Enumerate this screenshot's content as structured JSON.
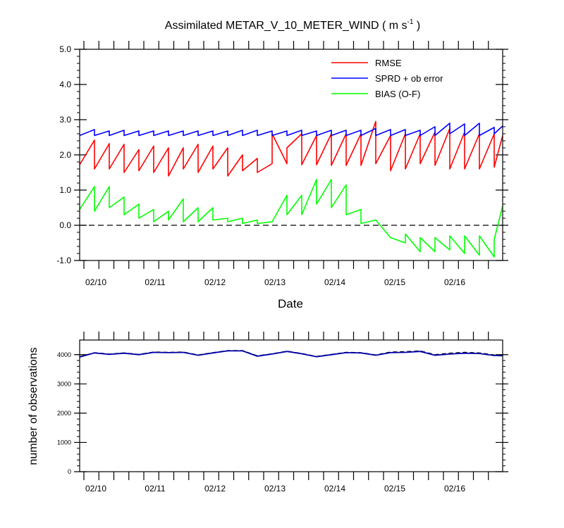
{
  "chart_data": [
    {
      "type": "line",
      "title": "Assimilated METAR_V_10_METER_WIND ( m s",
      "title_sup": "-1",
      "title_close": " )",
      "xlabel": "Date",
      "ylabel": "",
      "x_tick_labels": [
        "02/10",
        "02/11",
        "02/12",
        "02/13",
        "02/14",
        "02/15",
        "02/16"
      ],
      "y_tick_labels": [
        "5.0",
        "4.0",
        "3.0",
        "2.0",
        "1.0",
        "0.0",
        "-1.0"
      ],
      "ylim": [
        -1.0,
        5.0
      ],
      "xlim": [
        0,
        1
      ],
      "reference_line": 0.0,
      "legend_position": "top-right",
      "grid": false,
      "colors": {
        "rmse": "#ff0000",
        "sprd": "#0000ff",
        "bias": "#00ff00"
      },
      "series": [
        {
          "name": "RMSE",
          "points": [
            [
              0.0,
              1.72
            ],
            [
              0.035,
              2.42
            ],
            [
              0.035,
              1.6
            ],
            [
              0.07,
              2.32
            ],
            [
              0.07,
              1.6
            ],
            [
              0.105,
              2.3
            ],
            [
              0.105,
              1.5
            ],
            [
              0.14,
              2.15
            ],
            [
              0.14,
              1.55
            ],
            [
              0.175,
              2.25
            ],
            [
              0.175,
              1.5
            ],
            [
              0.21,
              2.2
            ],
            [
              0.21,
              1.4
            ],
            [
              0.245,
              2.2
            ],
            [
              0.245,
              1.6
            ],
            [
              0.28,
              2.3
            ],
            [
              0.28,
              1.5
            ],
            [
              0.315,
              2.25
            ],
            [
              0.315,
              1.6
            ],
            [
              0.35,
              2.2
            ],
            [
              0.35,
              1.4
            ],
            [
              0.385,
              2.0
            ],
            [
              0.385,
              1.55
            ],
            [
              0.42,
              1.9
            ],
            [
              0.42,
              1.5
            ],
            [
              0.455,
              1.75
            ],
            [
              0.455,
              2.6
            ],
            [
              0.49,
              1.75
            ],
            [
              0.49,
              2.2
            ],
            [
              0.525,
              2.6
            ],
            [
              0.525,
              1.72
            ],
            [
              0.56,
              2.55
            ],
            [
              0.56,
              1.72
            ],
            [
              0.595,
              2.6
            ],
            [
              0.595,
              1.7
            ],
            [
              0.63,
              2.6
            ],
            [
              0.63,
              1.7
            ],
            [
              0.665,
              2.6
            ],
            [
              0.665,
              1.7
            ],
            [
              0.7,
              2.95
            ],
            [
              0.7,
              1.75
            ],
            [
              0.735,
              2.55
            ],
            [
              0.735,
              1.55
            ],
            [
              0.77,
              2.6
            ],
            [
              0.77,
              1.6
            ],
            [
              0.805,
              2.6
            ],
            [
              0.805,
              1.75
            ],
            [
              0.84,
              2.65
            ],
            [
              0.84,
              1.7
            ],
            [
              0.875,
              2.75
            ],
            [
              0.875,
              1.6
            ],
            [
              0.91,
              2.65
            ],
            [
              0.91,
              1.6
            ],
            [
              0.945,
              2.6
            ],
            [
              0.945,
              1.6
            ],
            [
              0.98,
              2.6
            ],
            [
              0.98,
              1.65
            ],
            [
              1.0,
              2.55
            ]
          ]
        },
        {
          "name": "SPRD + ob error",
          "points": [
            [
              0.0,
              2.55
            ],
            [
              0.035,
              2.72
            ],
            [
              0.035,
              2.55
            ],
            [
              0.07,
              2.68
            ],
            [
              0.07,
              2.55
            ],
            [
              0.105,
              2.7
            ],
            [
              0.105,
              2.55
            ],
            [
              0.14,
              2.68
            ],
            [
              0.14,
              2.55
            ],
            [
              0.175,
              2.68
            ],
            [
              0.175,
              2.55
            ],
            [
              0.21,
              2.68
            ],
            [
              0.21,
              2.55
            ],
            [
              0.245,
              2.68
            ],
            [
              0.245,
              2.55
            ],
            [
              0.28,
              2.68
            ],
            [
              0.28,
              2.55
            ],
            [
              0.315,
              2.68
            ],
            [
              0.315,
              2.55
            ],
            [
              0.35,
              2.68
            ],
            [
              0.35,
              2.55
            ],
            [
              0.385,
              2.7
            ],
            [
              0.385,
              2.55
            ],
            [
              0.42,
              2.7
            ],
            [
              0.42,
              2.55
            ],
            [
              0.455,
              2.68
            ],
            [
              0.455,
              2.55
            ],
            [
              0.49,
              2.68
            ],
            [
              0.49,
              2.55
            ],
            [
              0.525,
              2.7
            ],
            [
              0.525,
              2.55
            ],
            [
              0.56,
              2.68
            ],
            [
              0.56,
              2.55
            ],
            [
              0.595,
              2.7
            ],
            [
              0.595,
              2.55
            ],
            [
              0.63,
              2.7
            ],
            [
              0.63,
              2.55
            ],
            [
              0.665,
              2.7
            ],
            [
              0.665,
              2.55
            ],
            [
              0.7,
              2.75
            ],
            [
              0.7,
              2.55
            ],
            [
              0.735,
              2.72
            ],
            [
              0.735,
              2.55
            ],
            [
              0.77,
              2.72
            ],
            [
              0.77,
              2.55
            ],
            [
              0.805,
              2.7
            ],
            [
              0.805,
              2.55
            ],
            [
              0.84,
              2.8
            ],
            [
              0.84,
              2.55
            ],
            [
              0.875,
              2.9
            ],
            [
              0.875,
              2.6
            ],
            [
              0.91,
              2.88
            ],
            [
              0.91,
              2.55
            ],
            [
              0.945,
              2.9
            ],
            [
              0.945,
              2.55
            ],
            [
              0.98,
              2.78
            ],
            [
              0.98,
              2.6
            ],
            [
              1.0,
              2.82
            ]
          ]
        },
        {
          "name": "BIAS (O-F)",
          "points": [
            [
              0.0,
              0.45
            ],
            [
              0.035,
              1.1
            ],
            [
              0.035,
              0.4
            ],
            [
              0.07,
              1.1
            ],
            [
              0.07,
              0.5
            ],
            [
              0.105,
              0.8
            ],
            [
              0.105,
              0.3
            ],
            [
              0.14,
              0.6
            ],
            [
              0.14,
              0.2
            ],
            [
              0.175,
              0.45
            ],
            [
              0.175,
              0.1
            ],
            [
              0.21,
              0.4
            ],
            [
              0.21,
              0.15
            ],
            [
              0.245,
              0.75
            ],
            [
              0.245,
              0.1
            ],
            [
              0.28,
              0.5
            ],
            [
              0.28,
              0.1
            ],
            [
              0.315,
              0.5
            ],
            [
              0.315,
              0.15
            ],
            [
              0.35,
              0.2
            ],
            [
              0.35,
              0.1
            ],
            [
              0.385,
              0.2
            ],
            [
              0.385,
              0.05
            ],
            [
              0.42,
              0.15
            ],
            [
              0.42,
              0.05
            ],
            [
              0.455,
              0.1
            ],
            [
              0.49,
              0.85
            ],
            [
              0.49,
              0.3
            ],
            [
              0.525,
              0.85
            ],
            [
              0.525,
              0.3
            ],
            [
              0.56,
              1.3
            ],
            [
              0.56,
              0.6
            ],
            [
              0.595,
              1.3
            ],
            [
              0.595,
              0.5
            ],
            [
              0.63,
              1.15
            ],
            [
              0.63,
              0.3
            ],
            [
              0.665,
              0.45
            ],
            [
              0.665,
              0.05
            ],
            [
              0.7,
              0.15
            ],
            [
              0.735,
              -0.35
            ],
            [
              0.77,
              -0.5
            ],
            [
              0.77,
              -0.25
            ],
            [
              0.805,
              -0.75
            ],
            [
              0.805,
              -0.35
            ],
            [
              0.84,
              -0.75
            ],
            [
              0.84,
              -0.35
            ],
            [
              0.875,
              -0.7
            ],
            [
              0.875,
              -0.3
            ],
            [
              0.91,
              -0.8
            ],
            [
              0.91,
              -0.3
            ],
            [
              0.945,
              -0.85
            ],
            [
              0.945,
              -0.3
            ],
            [
              0.98,
              -0.9
            ],
            [
              0.98,
              -0.4
            ],
            [
              1.0,
              0.55
            ]
          ]
        }
      ]
    },
    {
      "type": "line",
      "title": "",
      "xlabel": "",
      "ylabel": "number of observations",
      "x_tick_labels": [
        "02/10",
        "02/11",
        "02/12",
        "02/13",
        "02/14",
        "02/15",
        "02/16"
      ],
      "y_tick_labels": [
        "4000",
        "3000",
        "2000",
        "1000",
        "0"
      ],
      "ylim": [
        0,
        4500
      ],
      "xlim": [
        0,
        1
      ],
      "grid": false,
      "colors": {
        "obs_used": "#0000aa",
        "obs_possible": "#000000"
      },
      "series": [
        {
          "points": [
            [
              0.0,
              3920
            ],
            [
              0.035,
              4060
            ],
            [
              0.07,
              4010
            ],
            [
              0.105,
              4050
            ],
            [
              0.14,
              4000
            ],
            [
              0.175,
              4080
            ],
            [
              0.21,
              4070
            ],
            [
              0.245,
              4080
            ],
            [
              0.28,
              3980
            ],
            [
              0.315,
              4060
            ],
            [
              0.35,
              4130
            ],
            [
              0.385,
              4130
            ],
            [
              0.42,
              3950
            ],
            [
              0.455,
              4020
            ],
            [
              0.49,
              4110
            ],
            [
              0.525,
              4030
            ],
            [
              0.56,
              3930
            ],
            [
              0.595,
              4000
            ],
            [
              0.63,
              4070
            ],
            [
              0.665,
              4060
            ],
            [
              0.7,
              3980
            ],
            [
              0.735,
              4070
            ],
            [
              0.77,
              4080
            ],
            [
              0.805,
              4110
            ],
            [
              0.84,
              3980
            ],
            [
              0.875,
              4020
            ],
            [
              0.91,
              4050
            ],
            [
              0.945,
              4040
            ],
            [
              0.98,
              3970
            ],
            [
              1.0,
              3960
            ]
          ]
        },
        {
          "points": [
            [
              0.0,
              3930
            ],
            [
              0.035,
              4070
            ],
            [
              0.07,
              4020
            ],
            [
              0.105,
              4060
            ],
            [
              0.14,
              4010
            ],
            [
              0.175,
              4090
            ],
            [
              0.21,
              4080
            ],
            [
              0.245,
              4090
            ],
            [
              0.28,
              3990
            ],
            [
              0.315,
              4070
            ],
            [
              0.35,
              4140
            ],
            [
              0.385,
              4140
            ],
            [
              0.42,
              3960
            ],
            [
              0.455,
              4030
            ],
            [
              0.49,
              4120
            ],
            [
              0.525,
              4040
            ],
            [
              0.56,
              3940
            ],
            [
              0.595,
              4010
            ],
            [
              0.63,
              4080
            ],
            [
              0.665,
              4070
            ],
            [
              0.7,
              3990
            ],
            [
              0.735,
              4090
            ],
            [
              0.77,
              4100
            ],
            [
              0.805,
              4130
            ],
            [
              0.84,
              4000
            ],
            [
              0.875,
              4050
            ],
            [
              0.91,
              4080
            ],
            [
              0.945,
              4060
            ],
            [
              0.98,
              3990
            ],
            [
              1.0,
              3970
            ]
          ]
        }
      ]
    }
  ]
}
